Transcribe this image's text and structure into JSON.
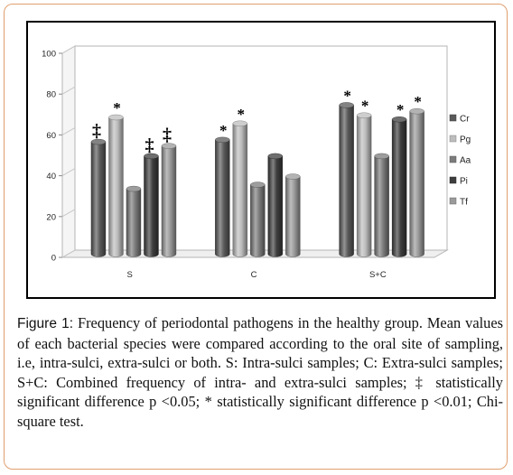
{
  "chart_data": {
    "type": "bar",
    "categories": [
      "S",
      "C",
      "S+C"
    ],
    "series": [
      {
        "name": "Cr",
        "values": [
          55,
          56,
          73
        ],
        "color": "#5a5a5a"
      },
      {
        "name": "Pg",
        "values": [
          67,
          64,
          68
        ],
        "color": "#bdbdbd"
      },
      {
        "name": "Aa",
        "values": [
          32,
          34,
          48
        ],
        "color": "#7c7c7c"
      },
      {
        "name": "Pi",
        "values": [
          48,
          48,
          66
        ],
        "color": "#3e3e3e"
      },
      {
        "name": "Tf",
        "values": [
          53,
          38,
          70
        ],
        "color": "#9a9a9a"
      }
    ],
    "annotations": [
      {
        "category": "S",
        "series": "Cr",
        "mark": "‡"
      },
      {
        "category": "S",
        "series": "Pg",
        "mark": "*"
      },
      {
        "category": "S",
        "series": "Pi",
        "mark": "‡"
      },
      {
        "category": "S",
        "series": "Tf",
        "mark": "‡"
      },
      {
        "category": "C",
        "series": "Cr",
        "mark": "*"
      },
      {
        "category": "C",
        "series": "Pg",
        "mark": "*"
      },
      {
        "category": "S+C",
        "series": "Cr",
        "mark": "*"
      },
      {
        "category": "S+C",
        "series": "Pg",
        "mark": "*"
      },
      {
        "category": "S+C",
        "series": "Pi",
        "mark": "*"
      },
      {
        "category": "S+C",
        "series": "Tf",
        "mark": "*"
      }
    ],
    "ylim": [
      0,
      100
    ],
    "yticks": [
      0,
      20,
      40,
      60,
      80,
      100
    ],
    "title": "",
    "xlabel": "",
    "ylabel": "",
    "legend_position": "right",
    "grid": false,
    "style": "3d-cylinder"
  },
  "caption": {
    "label": "Figure 1:",
    "text": " Frequency of periodontal pathogens in the healthy group. Mean values of each bacterial species were compared according to the oral site of sampling, i.e, intra-sulci, extra-sulci or both. S: Intra-sulci samples; C: Extra-sulci samples; S+C: Combined frequency of intra- and extra-sulci samples; ‡ statistically significant difference p <0.05; * statistically significant difference p <0.01; Chi-square test."
  }
}
